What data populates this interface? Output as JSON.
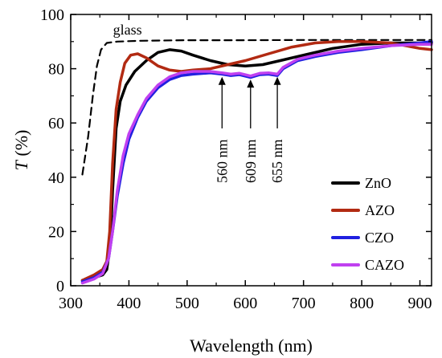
{
  "chart_data": {
    "type": "line",
    "xlabel": "Wavelength (nm)",
    "ylabel_italic": "T",
    "ylabel_rest": " (%)",
    "xlim": [
      300,
      920
    ],
    "ylim": [
      0,
      100
    ],
    "xticks": [
      300,
      400,
      500,
      600,
      700,
      800,
      900
    ],
    "yticks": [
      0,
      20,
      40,
      60,
      80,
      100
    ],
    "grid": false,
    "legend_position": "lower-right",
    "series": [
      {
        "name": "ZnO",
        "color": "#000000",
        "style": "solid",
        "points": [
          [
            320,
            2
          ],
          [
            340,
            3
          ],
          [
            355,
            4
          ],
          [
            362,
            6
          ],
          [
            368,
            15
          ],
          [
            372,
            35
          ],
          [
            378,
            58
          ],
          [
            385,
            68
          ],
          [
            395,
            74
          ],
          [
            410,
            79
          ],
          [
            430,
            83
          ],
          [
            450,
            86
          ],
          [
            470,
            87
          ],
          [
            490,
            86.5
          ],
          [
            510,
            85
          ],
          [
            540,
            83
          ],
          [
            570,
            81.5
          ],
          [
            600,
            81
          ],
          [
            630,
            81.5
          ],
          [
            660,
            83
          ],
          [
            700,
            85
          ],
          [
            750,
            87.5
          ],
          [
            800,
            89
          ],
          [
            850,
            89.5
          ],
          [
            900,
            89.5
          ],
          [
            920,
            89.5
          ]
        ]
      },
      {
        "name": "AZO",
        "color": "#b22a12",
        "style": "solid",
        "points": [
          [
            320,
            2
          ],
          [
            340,
            4
          ],
          [
            355,
            6
          ],
          [
            362,
            9
          ],
          [
            367,
            20
          ],
          [
            372,
            45
          ],
          [
            378,
            65
          ],
          [
            385,
            75
          ],
          [
            393,
            82
          ],
          [
            403,
            85
          ],
          [
            415,
            85.5
          ],
          [
            430,
            84
          ],
          [
            450,
            81
          ],
          [
            470,
            79.5
          ],
          [
            490,
            79
          ],
          [
            510,
            79.5
          ],
          [
            540,
            80
          ],
          [
            570,
            81.5
          ],
          [
            600,
            83
          ],
          [
            640,
            85.5
          ],
          [
            680,
            88
          ],
          [
            720,
            89.5
          ],
          [
            760,
            90
          ],
          [
            800,
            90
          ],
          [
            850,
            89.5
          ],
          [
            900,
            87.5
          ],
          [
            920,
            87
          ]
        ]
      },
      {
        "name": "CZO",
        "color": "#2020e0",
        "style": "solid",
        "points": [
          [
            320,
            1.5
          ],
          [
            340,
            3
          ],
          [
            355,
            5
          ],
          [
            365,
            10
          ],
          [
            372,
            20
          ],
          [
            380,
            33
          ],
          [
            390,
            45
          ],
          [
            400,
            54
          ],
          [
            415,
            62
          ],
          [
            430,
            68
          ],
          [
            450,
            73
          ],
          [
            470,
            76
          ],
          [
            490,
            77.5
          ],
          [
            510,
            78
          ],
          [
            540,
            78.5
          ],
          [
            560,
            78
          ],
          [
            575,
            77.5
          ],
          [
            590,
            77.8
          ],
          [
            609,
            76.8
          ],
          [
            625,
            77.8
          ],
          [
            640,
            78
          ],
          [
            655,
            77.5
          ],
          [
            665,
            80
          ],
          [
            690,
            83
          ],
          [
            720,
            84.5
          ],
          [
            760,
            86
          ],
          [
            800,
            87
          ],
          [
            850,
            88.5
          ],
          [
            900,
            89.5
          ],
          [
            920,
            90
          ]
        ]
      },
      {
        "name": "CAZO",
        "color": "#c040f0",
        "style": "solid",
        "points": [
          [
            320,
            1
          ],
          [
            340,
            2.5
          ],
          [
            355,
            4.5
          ],
          [
            365,
            10
          ],
          [
            372,
            20
          ],
          [
            380,
            35
          ],
          [
            390,
            48
          ],
          [
            400,
            56
          ],
          [
            415,
            63
          ],
          [
            430,
            69
          ],
          [
            450,
            74
          ],
          [
            470,
            77
          ],
          [
            490,
            78.5
          ],
          [
            510,
            79
          ],
          [
            540,
            79
          ],
          [
            560,
            78.5
          ],
          [
            575,
            78
          ],
          [
            590,
            78.3
          ],
          [
            609,
            77.3
          ],
          [
            625,
            78.3
          ],
          [
            640,
            78.5
          ],
          [
            655,
            78
          ],
          [
            665,
            80.5
          ],
          [
            690,
            83.5
          ],
          [
            720,
            85
          ],
          [
            760,
            86.5
          ],
          [
            800,
            87.5
          ],
          [
            850,
            88.5
          ],
          [
            900,
            89
          ],
          [
            920,
            89
          ]
        ]
      },
      {
        "name": "glass",
        "color": "#000000",
        "style": "dashed",
        "points": [
          [
            320,
            41
          ],
          [
            330,
            55
          ],
          [
            338,
            70
          ],
          [
            345,
            81
          ],
          [
            352,
            87
          ],
          [
            362,
            89.5
          ],
          [
            380,
            90
          ],
          [
            420,
            90.3
          ],
          [
            500,
            90.5
          ],
          [
            600,
            90.5
          ],
          [
            700,
            90.6
          ],
          [
            800,
            90.6
          ],
          [
            900,
            90.6
          ],
          [
            920,
            90.6
          ]
        ]
      }
    ],
    "annotations": [
      {
        "text": "glass",
        "x": 345,
        "y": 92
      },
      {
        "text": "560 nm",
        "x": 560,
        "y_arrow_head": 77,
        "y_arrow_tail": 58
      },
      {
        "text": "609 nm",
        "x": 609,
        "y_arrow_head": 76,
        "y_arrow_tail": 58
      },
      {
        "text": "655 nm",
        "x": 655,
        "y_arrow_head": 77,
        "y_arrow_tail": 58
      }
    ]
  }
}
